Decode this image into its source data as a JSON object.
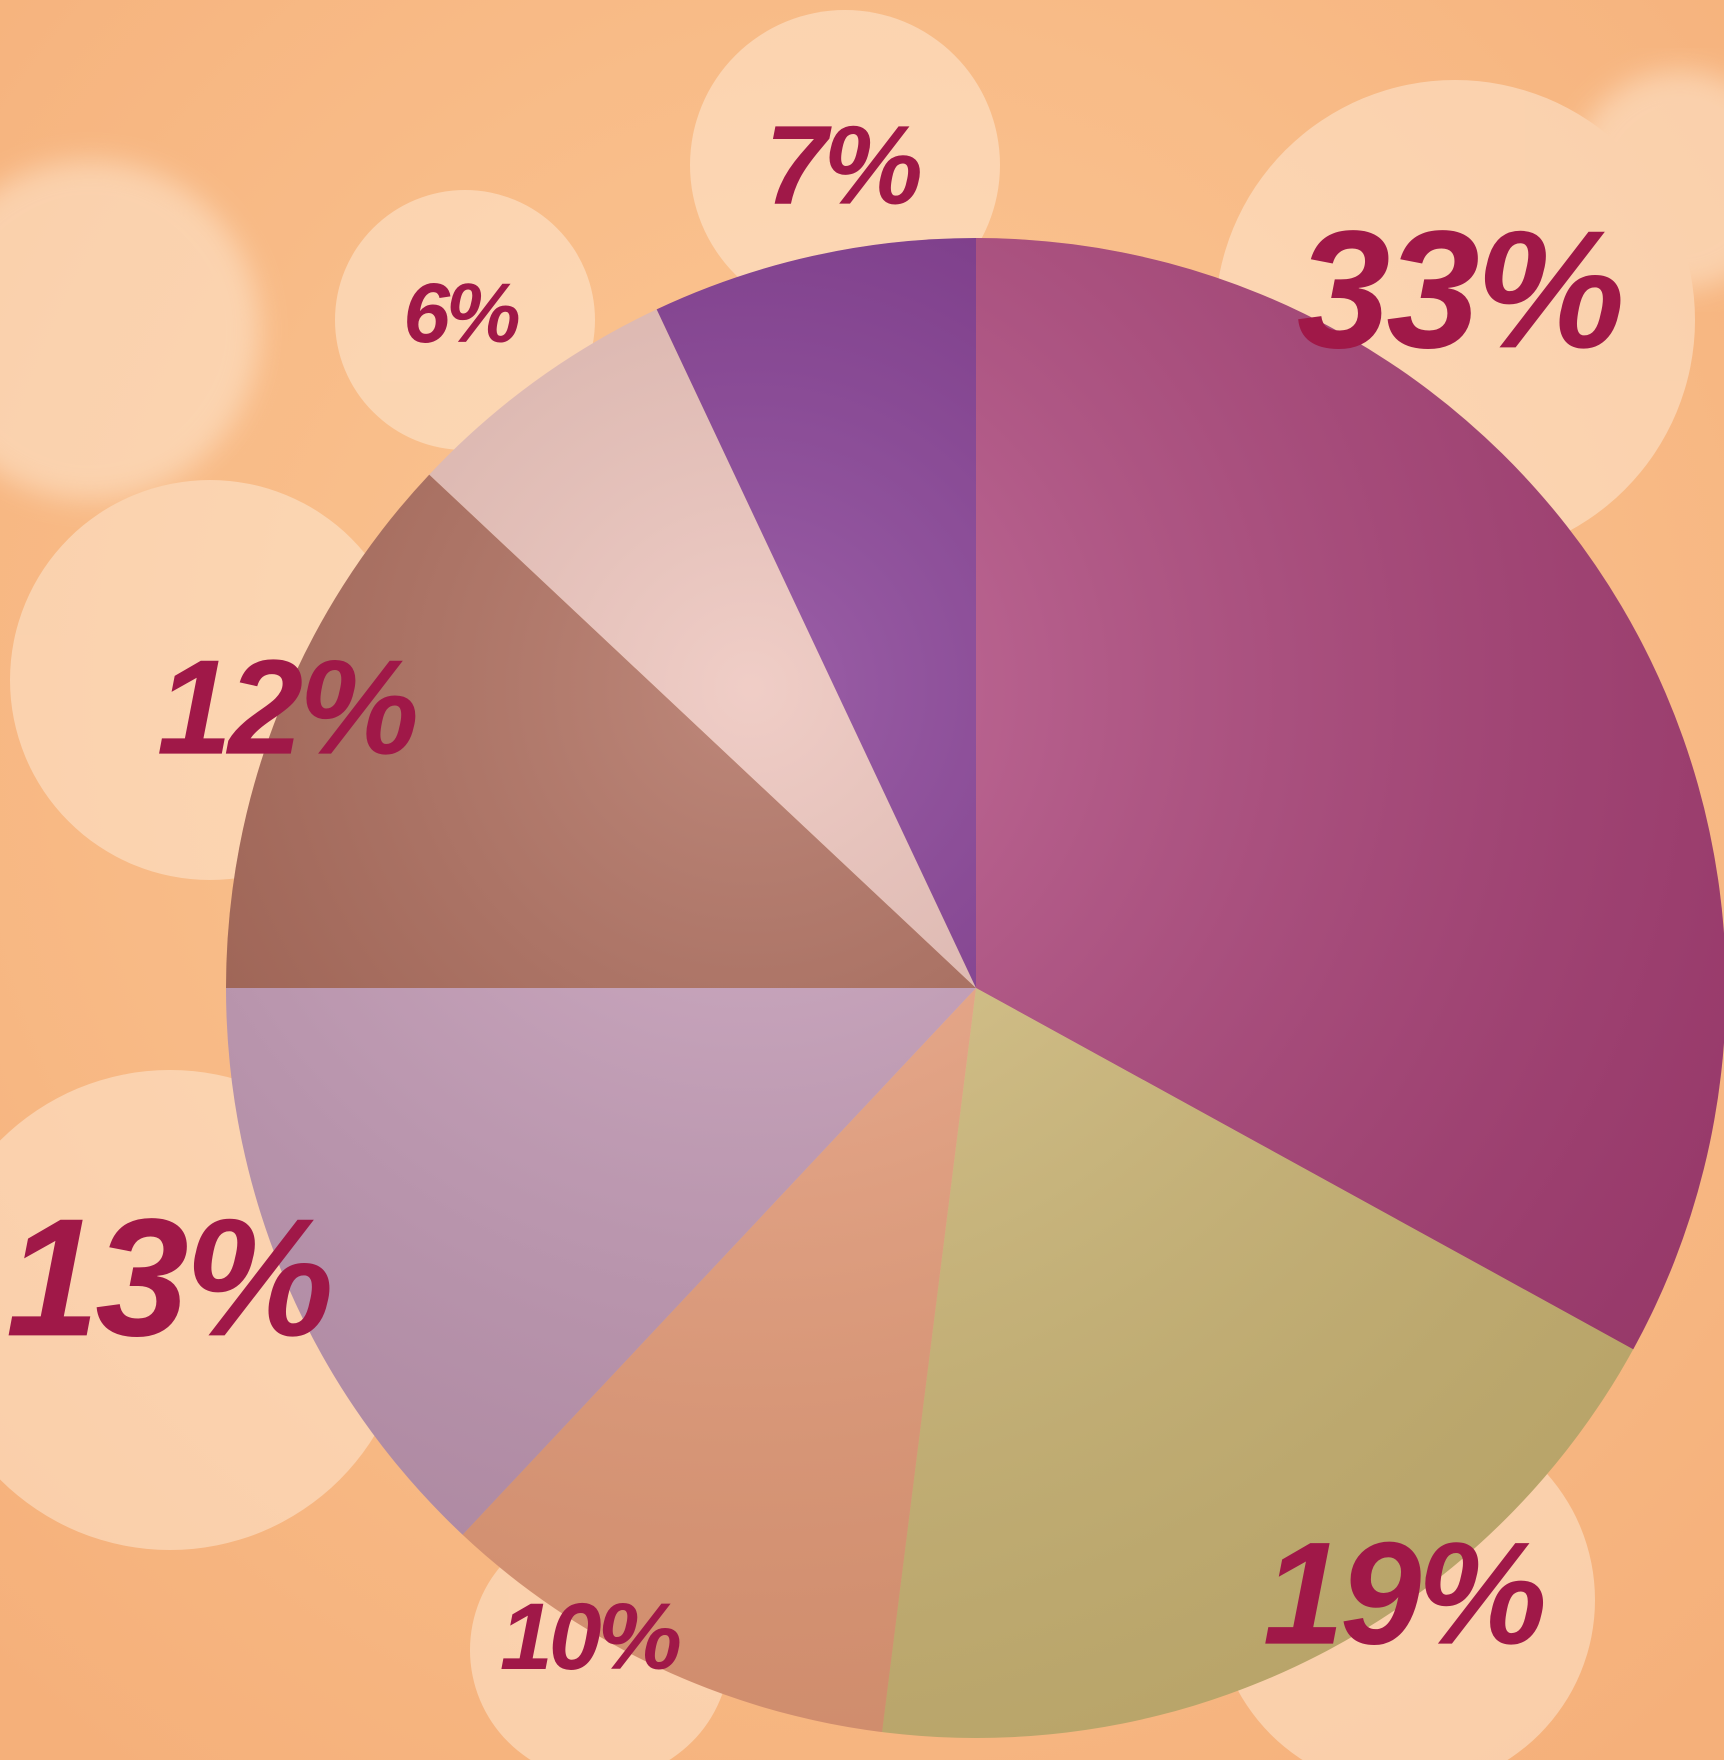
{
  "chart_data": {
    "type": "pie",
    "values": [
      33,
      19,
      10,
      13,
      12,
      6,
      7
    ],
    "value_labels": [
      "33%",
      "19%",
      "10%",
      "13%",
      "12%",
      "6%",
      "7%"
    ],
    "colors": [
      "#b0407a",
      "#d8c07a",
      "#f2a27c",
      "#c79ab8",
      "#a8604e",
      "#ebbdb4",
      "#7a2a8a"
    ]
  }
}
